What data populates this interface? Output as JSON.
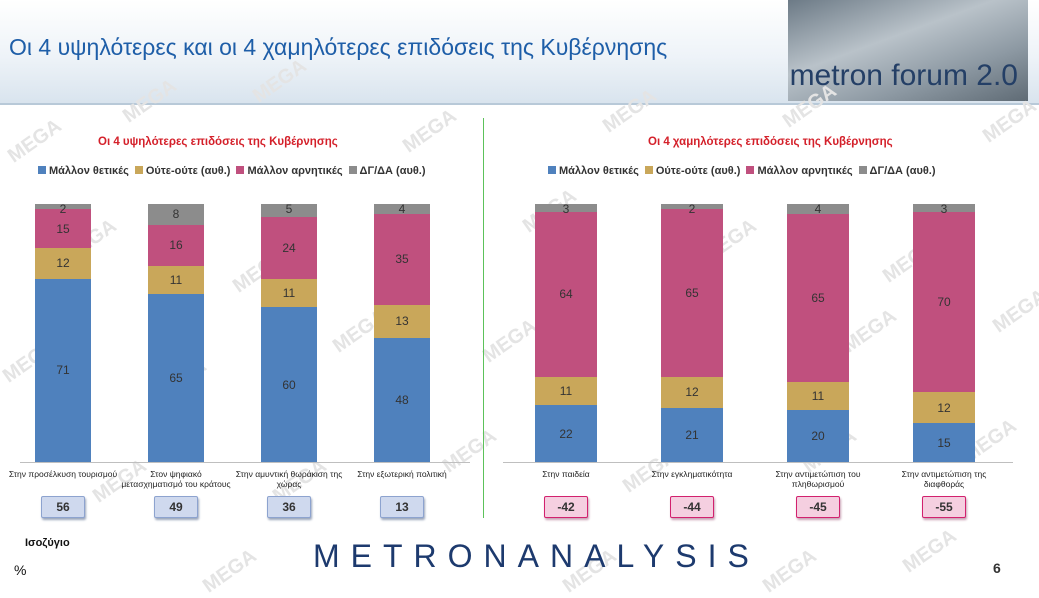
{
  "page": {
    "title": "Οι 4 υψηλότερες και οι 4 χαμηλότερες επιδόσεις της Κυβέρνησης",
    "logo_text": "metron forum 2.0",
    "balance_label": "Ισοζύγιο",
    "percent_sign": "%",
    "brand": "METRONANALYSIS",
    "page_number": "6",
    "watermark": "MEGA"
  },
  "colors": {
    "positive": "#4f81bd",
    "neutral": "#c9a75a",
    "negative": "#c0507e",
    "dk": "#8c8c8c",
    "title_red": "#d4202a"
  },
  "chart_data": [
    {
      "type": "bar",
      "stacked": true,
      "title": "Οι 4 υψηλότερες επιδόσεις της Κυβέρνησης",
      "legend": [
        "Μάλλον θετικές",
        "Ούτε-ούτε  (αυθ.)",
        "Μάλλον αρνητικές",
        "ΔΓ/ΔΑ (αυθ.)"
      ],
      "legend_position": "top",
      "categories": [
        "Στην προσέλκυση τουρισμού",
        "Στον ψηφιακό μετασχηματισμό του κράτους",
        "Στην αμυντική θωράκιση της χώρας",
        "Στην εξωτερική πολιτική"
      ],
      "series": [
        {
          "name": "Μάλλον θετικές",
          "values": [
            71,
            65,
            60,
            48
          ]
        },
        {
          "name": "Ούτε-ούτε  (αυθ.)",
          "values": [
            12,
            11,
            11,
            13
          ]
        },
        {
          "name": "Μάλλον αρνητικές",
          "values": [
            15,
            16,
            24,
            35
          ]
        },
        {
          "name": "ΔΓ/ΔΑ (αυθ.)",
          "values": [
            2,
            8,
            5,
            4
          ]
        }
      ],
      "balance": [
        56,
        49,
        36,
        13
      ],
      "ylim": [
        0,
        100
      ]
    },
    {
      "type": "bar",
      "stacked": true,
      "title": "Οι 4 χαμηλότερες επιδόσεις της Κυβέρνησης",
      "legend": [
        "Μάλλον θετικές",
        "Ούτε-ούτε  (αυθ.)",
        "Μάλλον αρνητικές",
        "ΔΓ/ΔΑ (αυθ.)"
      ],
      "legend_position": "top",
      "categories": [
        "Στην παιδεία",
        "Στην εγκληματικότητα",
        "Στην αντιμετώπιση του πληθωρισμού",
        "Στην αντιμετώπιση της διαφθοράς"
      ],
      "series": [
        {
          "name": "Μάλλον θετικές",
          "values": [
            22,
            21,
            20,
            15
          ]
        },
        {
          "name": "Ούτε-ούτε  (αυθ.)",
          "values": [
            11,
            12,
            11,
            12
          ]
        },
        {
          "name": "Μάλλον αρνητικές",
          "values": [
            64,
            65,
            65,
            70
          ]
        },
        {
          "name": "ΔΓ/ΔΑ (αυθ.)",
          "values": [
            3,
            2,
            4,
            3
          ]
        }
      ],
      "balance": [
        -42,
        -44,
        -45,
        -55
      ],
      "ylim": [
        0,
        100
      ]
    }
  ]
}
